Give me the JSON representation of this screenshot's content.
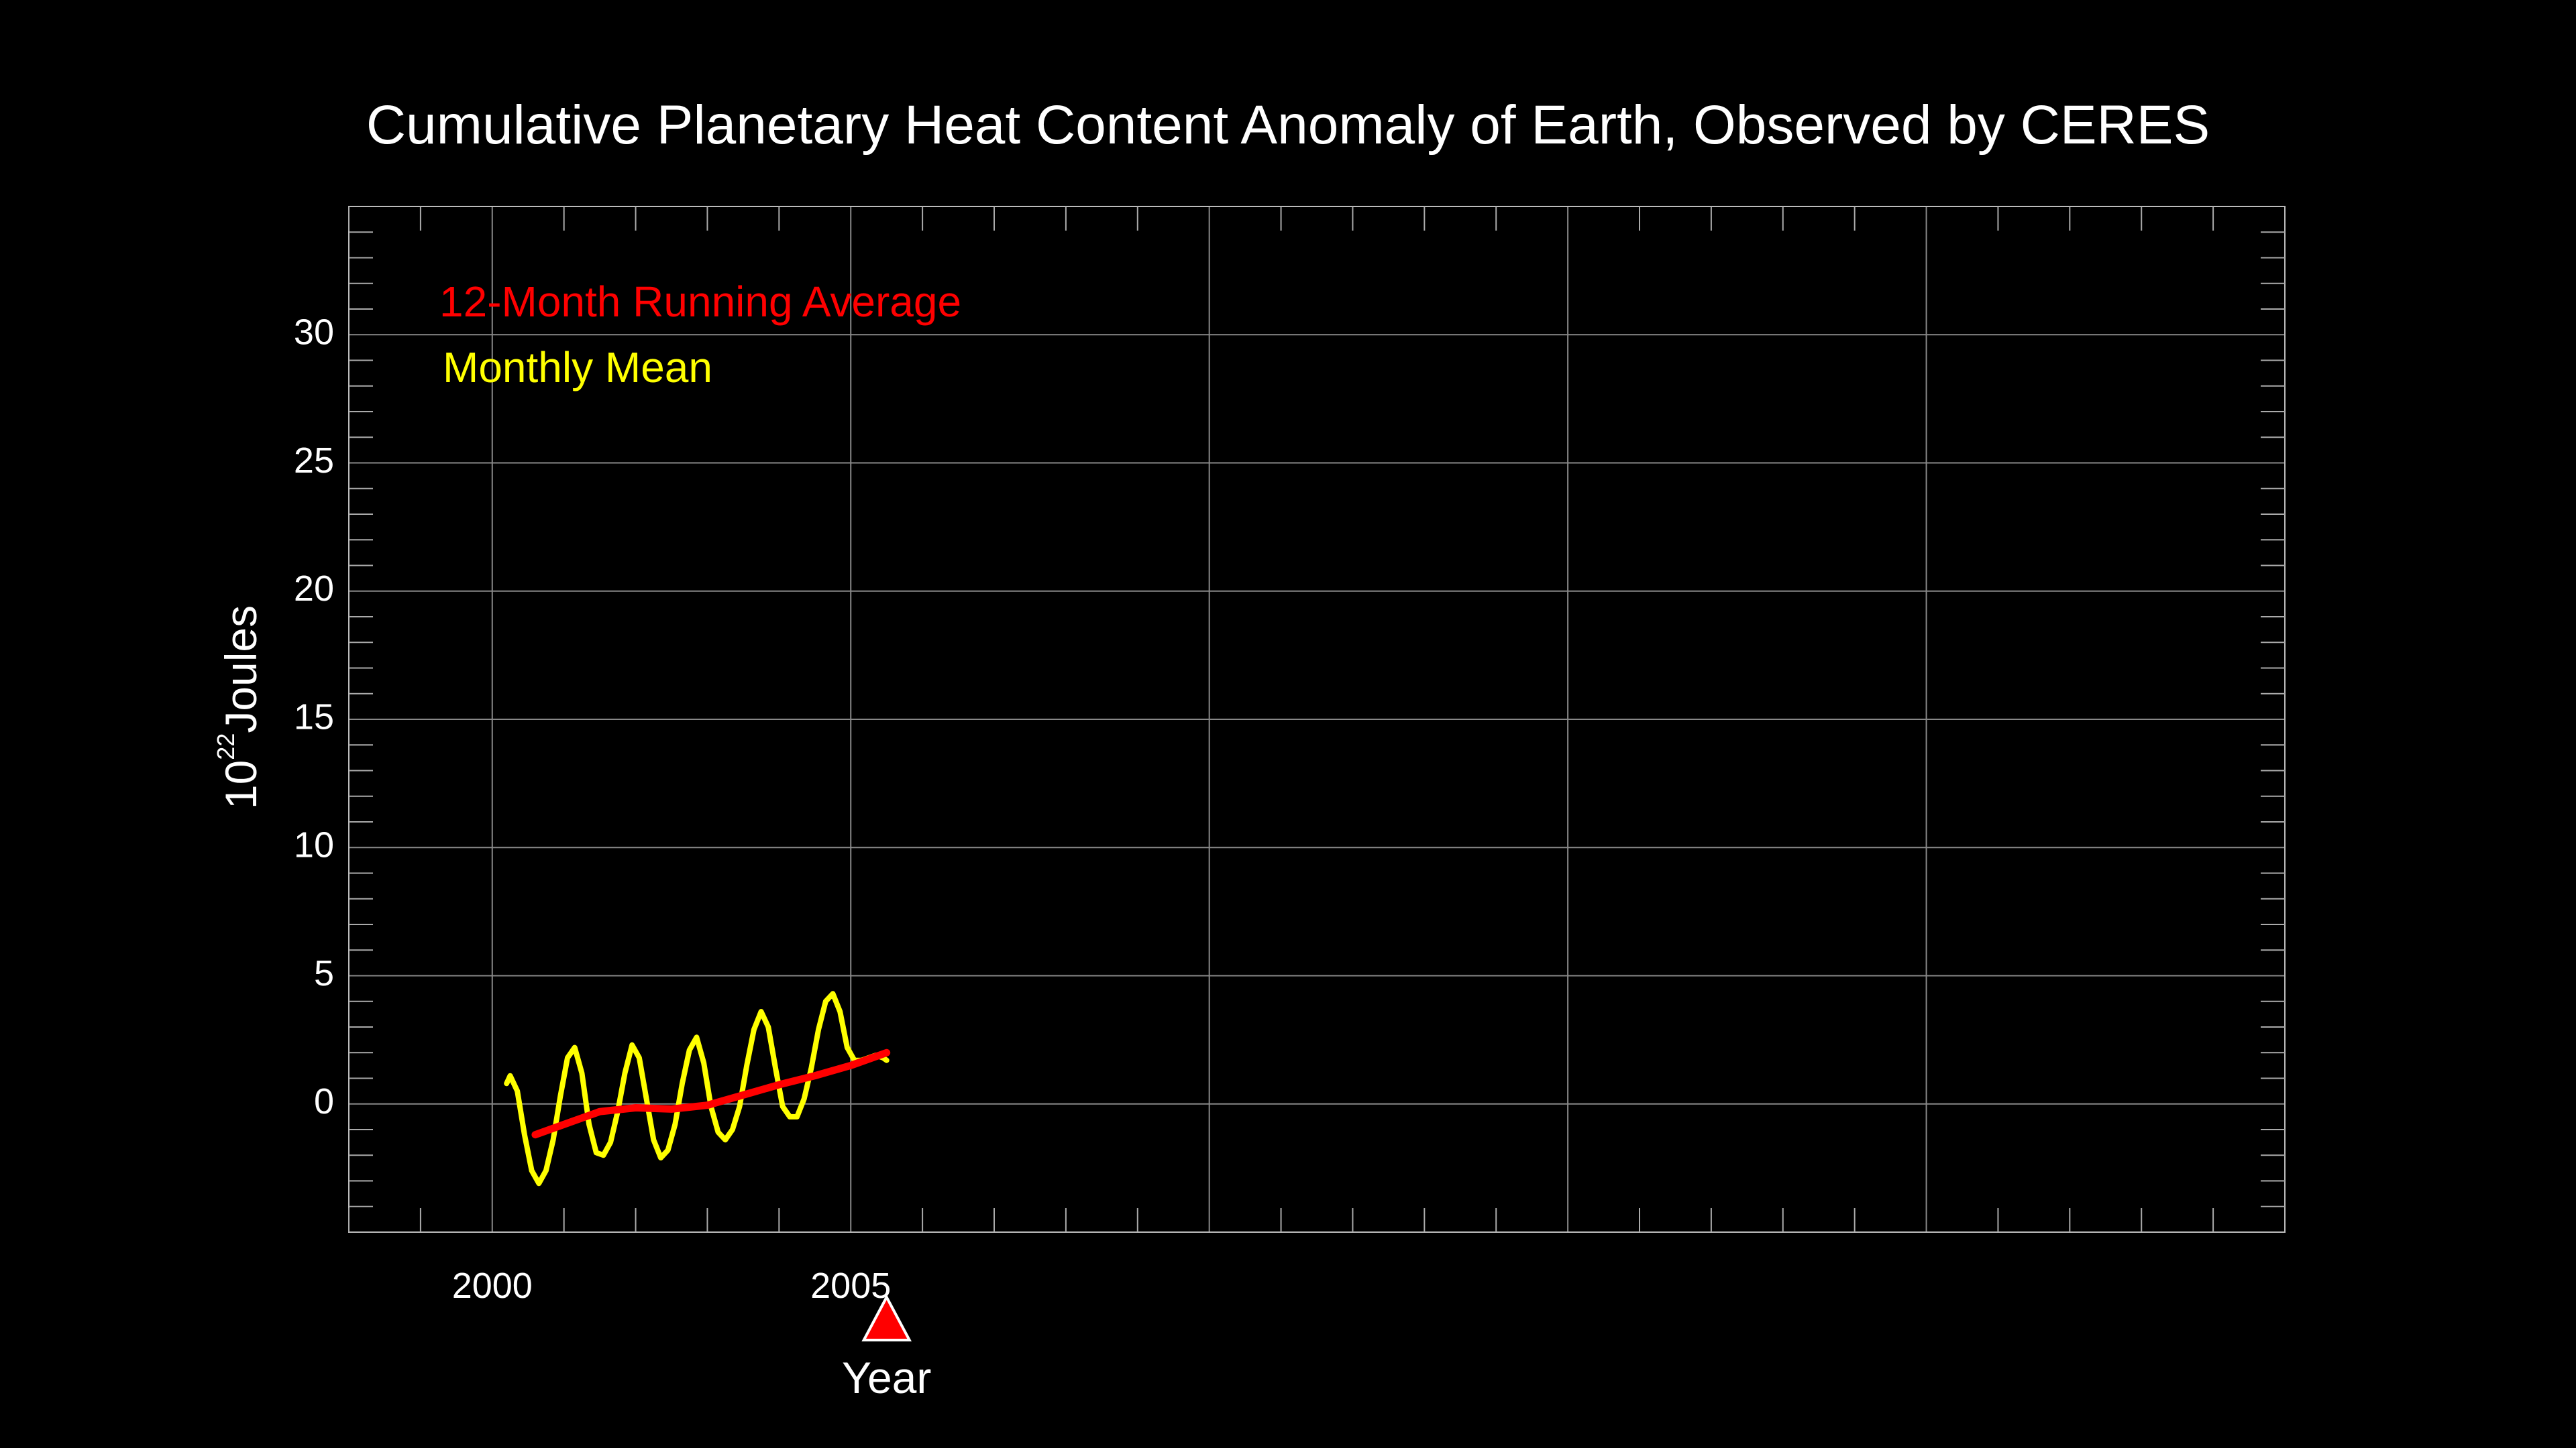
{
  "chart_data": {
    "type": "line",
    "title": "Cumulative Planetary Heat Content Anomaly of Earth, Observed by CERES",
    "xlabel": "Year",
    "ylabel_base": "10",
    "ylabel_exp": "22",
    "ylabel_unit": "Joules",
    "xlim": [
      1998,
      2025
    ],
    "ylim": [
      -5,
      35
    ],
    "x_ticks": [
      {
        "value": 2000,
        "label": "2000"
      },
      {
        "value": 2005,
        "label": "2005"
      }
    ],
    "x_gridlines": [
      2000,
      2005,
      2010,
      2015,
      2020
    ],
    "y_ticks": [
      {
        "value": 0,
        "label": "0"
      },
      {
        "value": 5,
        "label": "5"
      },
      {
        "value": 10,
        "label": "10"
      },
      {
        "value": 15,
        "label": "15"
      },
      {
        "value": 20,
        "label": "20"
      },
      {
        "value": 25,
        "label": "25"
      },
      {
        "value": 30,
        "label": "30"
      }
    ],
    "grid": true,
    "legend_placement": "top-left",
    "current_year_marker": 2005.5,
    "series": [
      {
        "name": "12-Month Running Average",
        "color": "#ff0000",
        "x": [
          2000.6,
          2001.0,
          2001.5,
          2002.0,
          2002.5,
          2003.0,
          2003.5,
          2004.0,
          2004.5,
          2005.0,
          2005.5
        ],
        "y": [
          -1.2,
          -0.8,
          -0.3,
          -0.15,
          -0.2,
          -0.05,
          0.35,
          0.75,
          1.1,
          1.5,
          2.0
        ]
      },
      {
        "name": "Monthly Mean",
        "color": "#ffff00",
        "x": [
          2000.2,
          2000.25,
          2000.35,
          2000.45,
          2000.55,
          2000.65,
          2000.75,
          2000.85,
          2000.95,
          2001.05,
          2001.15,
          2001.25,
          2001.35,
          2001.45,
          2001.55,
          2001.65,
          2001.75,
          2001.85,
          2001.95,
          2002.05,
          2002.15,
          2002.25,
          2002.35,
          2002.45,
          2002.55,
          2002.65,
          2002.75,
          2002.85,
          2002.95,
          2003.05,
          2003.15,
          2003.25,
          2003.35,
          2003.45,
          2003.55,
          2003.65,
          2003.75,
          2003.85,
          2003.95,
          2004.05,
          2004.15,
          2004.25,
          2004.35,
          2004.45,
          2004.55,
          2004.65,
          2004.75,
          2004.85,
          2004.95,
          2005.05,
          2005.15,
          2005.25,
          2005.35,
          2005.45,
          2005.5
        ],
        "y": [
          0.8,
          1.1,
          0.5,
          -1.2,
          -2.6,
          -3.1,
          -2.6,
          -1.4,
          0.3,
          1.8,
          2.2,
          1.2,
          -0.8,
          -1.9,
          -2.0,
          -1.5,
          -0.3,
          1.2,
          2.3,
          1.8,
          0.2,
          -1.4,
          -2.1,
          -1.8,
          -0.8,
          0.8,
          2.1,
          2.6,
          1.6,
          -0.1,
          -1.1,
          -1.4,
          -1.0,
          -0.1,
          1.5,
          2.9,
          3.6,
          3.0,
          1.4,
          -0.1,
          -0.5,
          -0.5,
          0.2,
          1.4,
          2.9,
          4.0,
          4.3,
          3.6,
          2.2,
          1.7,
          1.7,
          1.8,
          1.9,
          1.8,
          1.7
        ]
      }
    ]
  }
}
